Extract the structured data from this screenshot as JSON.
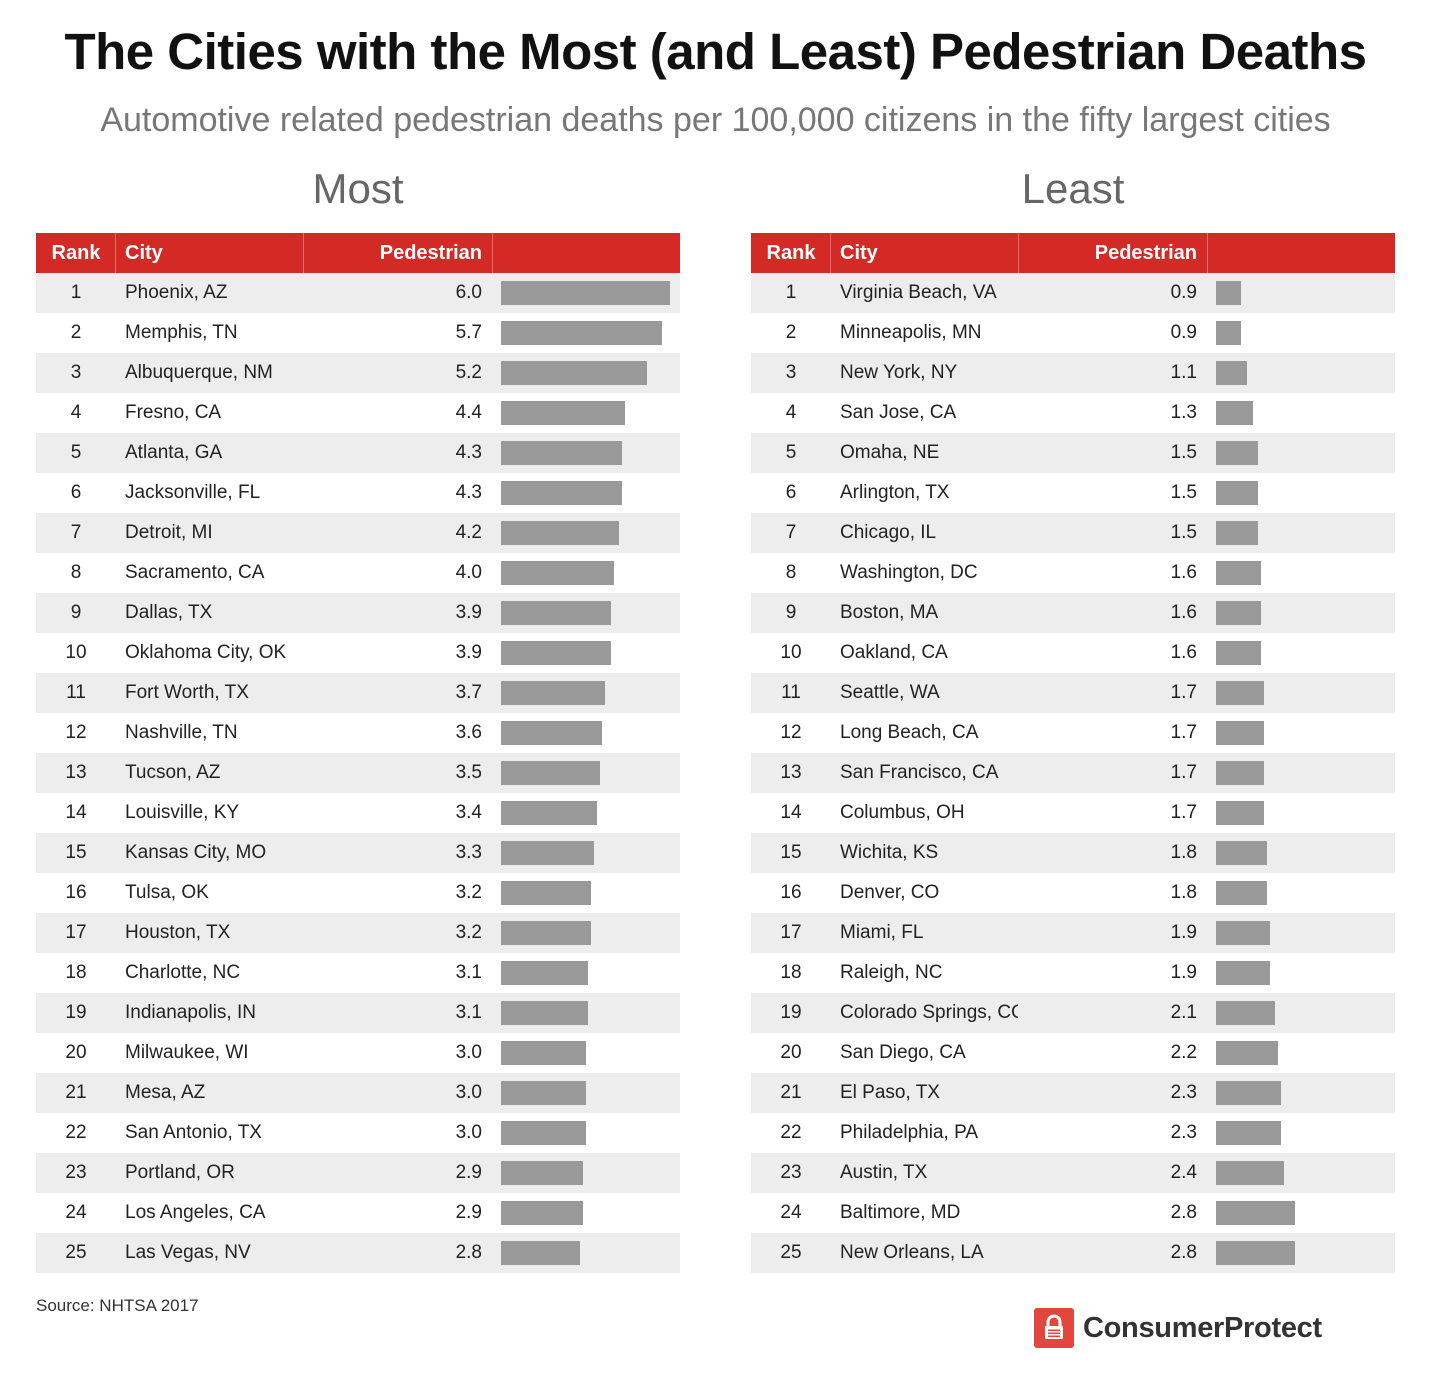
{
  "header": {
    "title": "The Cities with the Most (and Least) Pedestrian Deaths",
    "subtitle": "Automotive related pedestrian deaths per 100,000 citizens in the fifty largest cities"
  },
  "columns": {
    "rank": "Rank",
    "city": "City",
    "value": "Pedestrian"
  },
  "footer": {
    "source": "Source: NHTSA 2017",
    "brand": "ConsumerProtect"
  },
  "colors": {
    "header_red": "#d42a26",
    "bar_gray": "#999999",
    "row_alt": "#ededed",
    "logo_red": "#e2463f"
  },
  "chart_data": [
    {
      "type": "bar",
      "orientation": "horizontal",
      "title": "Most",
      "xlim": [
        0,
        6.0
      ],
      "ranks": [
        1,
        2,
        3,
        4,
        5,
        6,
        7,
        8,
        9,
        10,
        11,
        12,
        13,
        14,
        15,
        16,
        17,
        18,
        19,
        20,
        21,
        22,
        23,
        24,
        25
      ],
      "categories": [
        "Phoenix, AZ",
        "Memphis, TN",
        "Albuquerque, NM",
        "Fresno, CA",
        "Atlanta, GA",
        "Jacksonville, FL",
        "Detroit, MI",
        "Sacramento, CA",
        "Dallas, TX",
        "Oklahoma City, OK",
        "Fort Worth, TX",
        "Nashville, TN",
        "Tucson, AZ",
        "Louisville, KY",
        "Kansas City, MO",
        "Tulsa, OK",
        "Houston, TX",
        "Charlotte, NC",
        "Indianapolis, IN",
        "Milwaukee, WI",
        "Mesa, AZ",
        "San Antonio, TX",
        "Portland, OR",
        "Los Angeles, CA",
        "Las Vegas, NV"
      ],
      "values": [
        6.0,
        5.7,
        5.2,
        4.4,
        4.3,
        4.3,
        4.2,
        4.0,
        3.9,
        3.9,
        3.7,
        3.6,
        3.5,
        3.4,
        3.3,
        3.2,
        3.2,
        3.1,
        3.1,
        3.0,
        3.0,
        3.0,
        2.9,
        2.9,
        2.8
      ]
    },
    {
      "type": "bar",
      "orientation": "horizontal",
      "title": "Least",
      "xlim": [
        0,
        6.0
      ],
      "ranks": [
        1,
        2,
        3,
        4,
        5,
        6,
        7,
        8,
        9,
        10,
        11,
        12,
        13,
        14,
        15,
        16,
        17,
        18,
        19,
        20,
        21,
        22,
        23,
        24,
        25
      ],
      "categories": [
        "Virginia Beach, VA",
        "Minneapolis, MN",
        "New York, NY",
        "San Jose, CA",
        "Omaha, NE",
        "Arlington, TX",
        "Chicago, IL",
        "Washington, DC",
        "Boston, MA",
        "Oakland, CA",
        "Seattle, WA",
        "Long Beach, CA",
        "San Francisco, CA",
        "Columbus, OH",
        "Wichita, KS",
        "Denver, CO",
        "Miami, FL",
        "Raleigh, NC",
        "Colorado Springs, CO",
        "San Diego, CA",
        "El Paso, TX",
        "Philadelphia, PA",
        "Austin, TX",
        "Baltimore, MD",
        "New Orleans, LA"
      ],
      "values": [
        0.9,
        0.9,
        1.1,
        1.3,
        1.5,
        1.5,
        1.5,
        1.6,
        1.6,
        1.6,
        1.7,
        1.7,
        1.7,
        1.7,
        1.8,
        1.8,
        1.9,
        1.9,
        2.1,
        2.2,
        2.3,
        2.3,
        2.4,
        2.8,
        2.8
      ]
    }
  ]
}
